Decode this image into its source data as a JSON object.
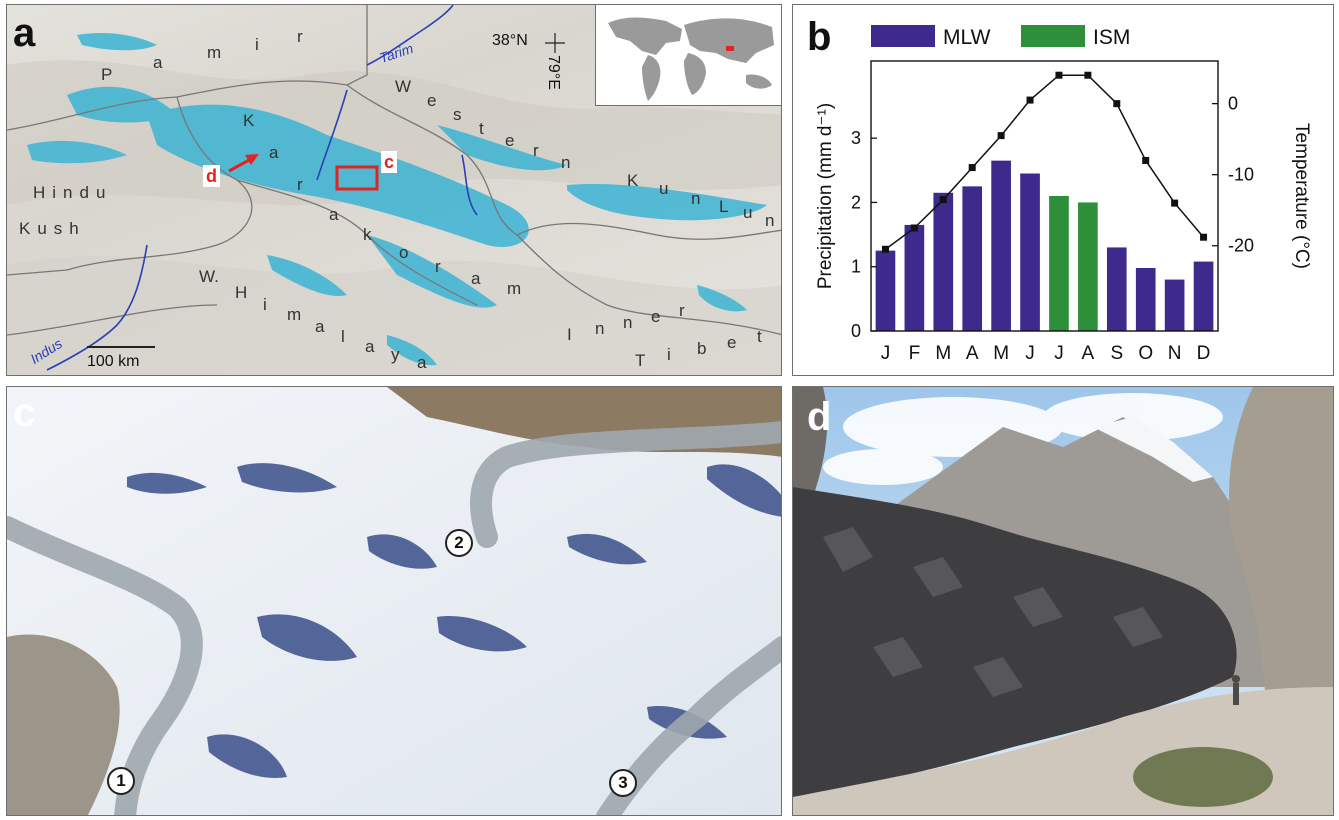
{
  "panels": {
    "a": {
      "letter": "a",
      "coord_lat": "38°N",
      "coord_lon": "79°E",
      "rivers": {
        "tarim": "Tarim",
        "indus": "Indus"
      },
      "regions": {
        "pamir": [
          "P",
          "a",
          "m",
          "i",
          "r"
        ],
        "karakoram": [
          "K",
          "a",
          "r",
          "a",
          "k",
          "o",
          "r",
          "a",
          "m"
        ],
        "western_kun_lun": [
          "W",
          "e",
          "s",
          "t",
          "e",
          "r",
          "n",
          "K",
          "u",
          "n",
          "L",
          "u",
          "n"
        ],
        "hindu": "Hindu",
        "kush": "Kush",
        "himalaya": [
          "W.",
          "H",
          "i",
          "m",
          "a",
          "l",
          "a",
          "y",
          "a"
        ],
        "inner": [
          "I",
          "n",
          "n",
          "e",
          "r"
        ],
        "tibet": [
          "T",
          "i",
          "b",
          "e",
          "t"
        ]
      },
      "callout_c": "c",
      "callout_d": "d",
      "scale_label": "100 km",
      "colors": {
        "glacier": "#3cb4d4",
        "highlight": "#e32222",
        "river": "#2b3fb5"
      }
    },
    "b": {
      "letter": "b"
    },
    "c": {
      "letter": "c",
      "markers": [
        "1",
        "2",
        "3"
      ]
    },
    "d": {
      "letter": "d"
    }
  },
  "chart_data": {
    "type": "bar",
    "categories": [
      "J",
      "F",
      "M",
      "A",
      "M",
      "J",
      "J",
      "A",
      "S",
      "O",
      "N",
      "D"
    ],
    "series": [
      {
        "name": "Precipitation",
        "values": [
          1.25,
          1.65,
          2.15,
          2.25,
          2.65,
          2.45,
          2.1,
          2.0,
          1.3,
          0.98,
          0.8,
          1.08
        ],
        "colors": [
          "#3d2a8c",
          "#3d2a8c",
          "#3d2a8c",
          "#3d2a8c",
          "#3d2a8c",
          "#3d2a8c",
          "#2e8f3a",
          "#2e8f3a",
          "#3d2a8c",
          "#3d2a8c",
          "#3d2a8c",
          "#3d2a8c"
        ]
      },
      {
        "name": "Temperature",
        "type": "line",
        "axis": "right",
        "values": [
          -20.5,
          -17.5,
          -13.5,
          -9,
          -4.5,
          0.5,
          4,
          4,
          0,
          -8,
          -14,
          -18.8
        ]
      }
    ],
    "legend": [
      {
        "label": "MLW",
        "color": "#3d2a8c"
      },
      {
        "label": "ISM",
        "color": "#2e8f3a"
      }
    ],
    "legend_placement": "top",
    "ylabel_left": "Precipitation (mm d⁻¹)",
    "ylabel_right": "Temperature (°C)",
    "ylim_left": [
      0,
      4.2
    ],
    "ylim_right": [
      -32,
      6
    ],
    "yticks_left": [
      "0",
      "1",
      "2",
      "3"
    ],
    "yticks_right": [
      "-20",
      "-10",
      "0"
    ],
    "grid": false
  }
}
